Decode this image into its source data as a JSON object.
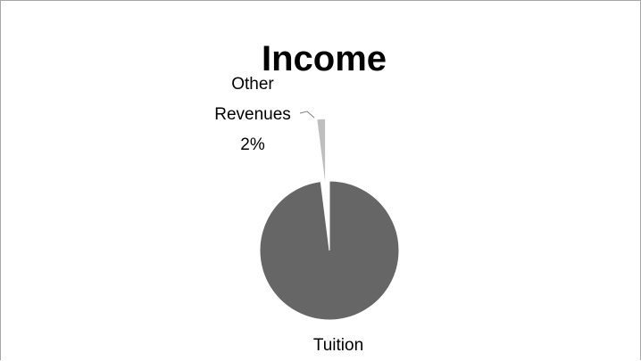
{
  "chart_data": {
    "type": "pie",
    "title": "Income",
    "slices": [
      {
        "label": "Tuition",
        "value": 98,
        "label_lines": [
          "Tuition"
        ],
        "color": "#666666"
      },
      {
        "label": "Other Revenues",
        "value": 2,
        "label_lines": [
          "Other",
          "Revenues",
          "2%"
        ],
        "color": "#bfbfbf"
      }
    ],
    "exploded_slice": "Other Revenues",
    "legend": "none"
  }
}
